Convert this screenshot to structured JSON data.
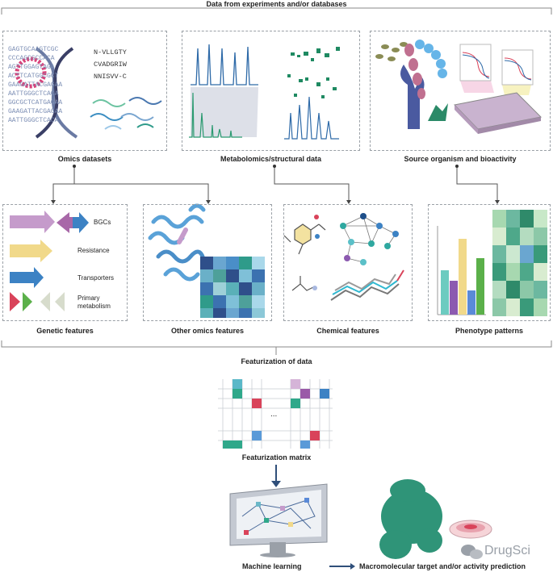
{
  "header": {
    "title": "Data from experiments and/or databases"
  },
  "top_panels": [
    {
      "label": "Omics datasets"
    },
    {
      "label": "Metabolomics/structural data"
    },
    {
      "label": "Source organism and bioactivity"
    }
  ],
  "dna_sequences": [
    "GAGTGCAAGTCGC",
    "CCCAGCGCCACA",
    "AGTTGGAGTAGA",
    "ACTTCATGGCGCT",
    "GAAGATTACGAGAA",
    "AATTGGGCTCACA",
    "GGCGCTCATGAGAA",
    "GAAGATTACGAGAA",
    "AATTGGGCTCACA"
  ],
  "peptide_sequences": [
    "N-VLLGTY",
    "CVADGRIW",
    "NNISVV-C"
  ],
  "genetic_legend": [
    "BGCs",
    "Resistance",
    "Transporters",
    "Primary metabolism"
  ],
  "mid_panels": [
    {
      "label": "Genetic features"
    },
    {
      "label": "Other omics features"
    },
    {
      "label": "Chemical features"
    },
    {
      "label": "Phenotype patterns"
    }
  ],
  "featurization": {
    "title": "Featurization of data",
    "matrix_label": "Featurization matrix",
    "ellipsis": "..."
  },
  "bottom": {
    "ml_label": "Machine learning",
    "prediction_label": "Macromolecular target and/or activity prediction"
  },
  "watermark": {
    "text": "DrugSci"
  },
  "colors": {
    "purple": "#c59bcb",
    "teal": "#2fa88a",
    "blue": "#3c82c4",
    "yellow": "#f1d98a",
    "green": "#5bb04a",
    "red": "#d9435a",
    "navy": "#3d5f96"
  }
}
